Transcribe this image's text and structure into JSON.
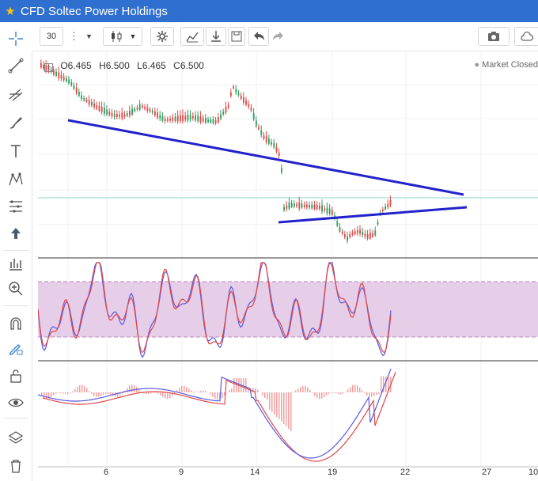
{
  "window": {
    "title": "CFD Soltec Power Holdings"
  },
  "toolbar": {
    "interval": "30"
  },
  "ohlc": {
    "open": "O6.465",
    "high": "H6.500",
    "low": "L6.465",
    "close": "C6.500"
  },
  "status": {
    "market": "Market Closed"
  },
  "x_axis": {
    "ticks": [
      "6",
      "9",
      "14",
      "19",
      "22",
      "27",
      "10"
    ]
  },
  "colors": {
    "titlebar": "#2f6fd0",
    "up_candle": "#2a9d5c",
    "down_candle": "#e04848",
    "trendline": "#2222cc",
    "stoch_band": "#e6cde8",
    "stoch_k": "#e04848",
    "stoch_d": "#5a5ae0",
    "macd_line": "#5a5ae0",
    "signal_line": "#e04848",
    "histogram": "#f2a0a0"
  },
  "icons": {
    "sidebar": [
      "crosshair-icon",
      "line-tool-icon",
      "fork-tool-icon",
      "brush-icon",
      "text-tool-icon",
      "pattern-icon",
      "fibonacci-icon",
      "arrow-up-icon",
      "measure-icon",
      "zoom-in-icon",
      "magnet-icon",
      "lock-drawing-icon",
      "unlock-icon",
      "eye-icon",
      "layers-icon",
      "trash-icon"
    ],
    "toolbar": [
      "menu-dots-icon",
      "dropdown-icon",
      "candle-type-icon",
      "dropdown-icon",
      "settings-icon",
      "indicators-icon",
      "download-icon",
      "save-icon",
      "undo-icon",
      "redo-icon",
      "camera-icon",
      "cloud-icon"
    ]
  }
}
